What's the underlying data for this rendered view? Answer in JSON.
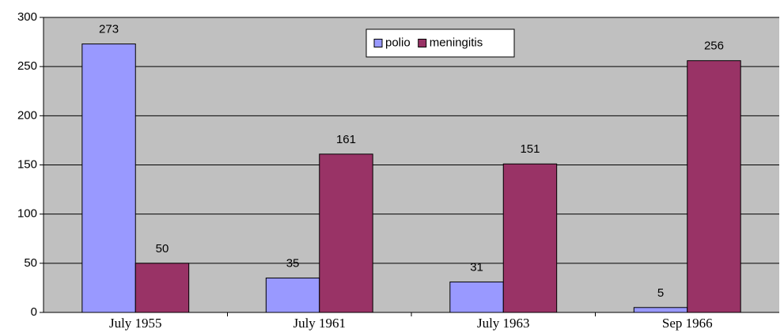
{
  "chart_data": {
    "type": "bar",
    "categories": [
      "July 1955",
      "July 1961",
      "July 1963",
      "Sep 1966"
    ],
    "series": [
      {
        "name": "polio",
        "color": "#9999ff",
        "values": [
          273,
          35,
          31,
          5
        ]
      },
      {
        "name": "meningitis",
        "color": "#993366",
        "values": [
          50,
          161,
          151,
          256
        ]
      }
    ],
    "ylim": [
      0,
      300
    ],
    "yticks": [
      0,
      50,
      100,
      150,
      200,
      250,
      300
    ],
    "grid": true,
    "legend": "top"
  }
}
